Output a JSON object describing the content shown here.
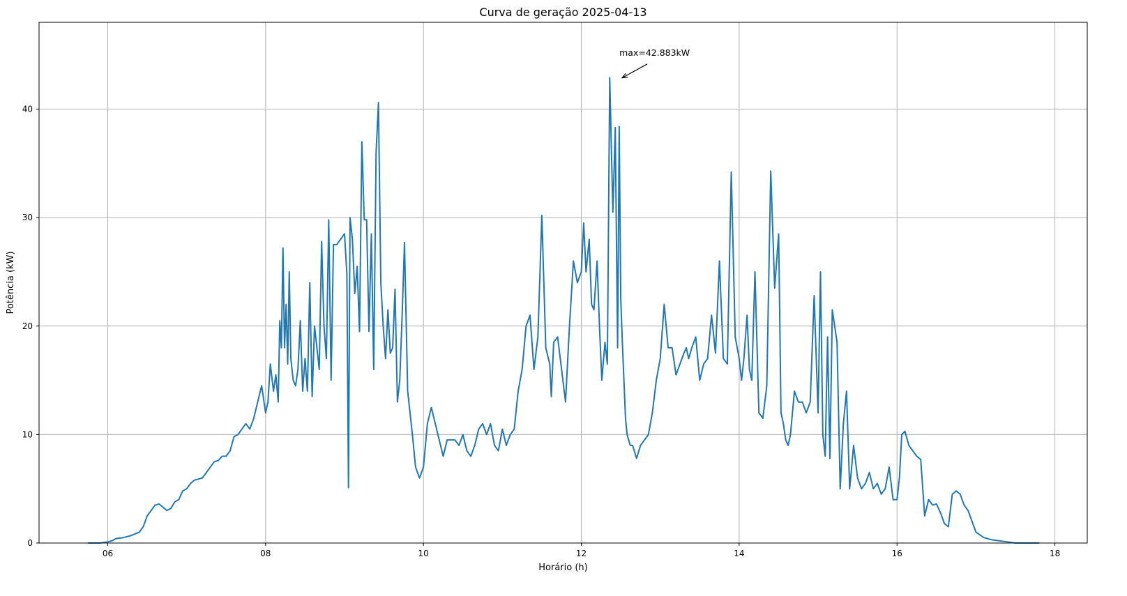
{
  "chart_data": {
    "type": "line",
    "title": "Curva de geração 2025-04-13",
    "xlabel": "Horário (h)",
    "ylabel": "Potência (kW)",
    "xlim": [
      5.13,
      18.41
    ],
    "ylim": [
      0,
      48
    ],
    "x_ticks": [
      6,
      8,
      10,
      12,
      14,
      16,
      18
    ],
    "x_tick_labels": [
      "06",
      "08",
      "10",
      "12",
      "14",
      "16",
      "18"
    ],
    "y_ticks": [
      0,
      10,
      20,
      30,
      40
    ],
    "y_tick_labels": [
      "0",
      "10",
      "20",
      "30",
      "40"
    ],
    "grid": true,
    "line_color": "#1f77b4",
    "annotation": {
      "text": "max=42.883kW",
      "x": 12.5,
      "y": 42.883,
      "text_x": 12.5,
      "text_y": 44.8
    },
    "series": [
      {
        "x": [
          5.75,
          5.9,
          6.0,
          6.05,
          6.08,
          6.1,
          6.2,
          6.3,
          6.4,
          6.45,
          6.5,
          6.55,
          6.6,
          6.65,
          6.7,
          6.75,
          6.8,
          6.85,
          6.9,
          6.95,
          7.0,
          7.05,
          7.1,
          7.15,
          7.2,
          7.25,
          7.3,
          7.35,
          7.4,
          7.45,
          7.5,
          7.55,
          7.6,
          7.65,
          7.7,
          7.75,
          7.8,
          7.85,
          7.9,
          7.95,
          8.0,
          8.03,
          8.06,
          8.1,
          8.13,
          8.16,
          8.18,
          8.2,
          8.22,
          8.24,
          8.26,
          8.28,
          8.3,
          8.32,
          8.35,
          8.38,
          8.41,
          8.44,
          8.47,
          8.5,
          8.53,
          8.56,
          8.59,
          8.62,
          8.65,
          8.68,
          8.71,
          8.74,
          8.77,
          8.8,
          8.83,
          8.86,
          8.9,
          8.95,
          9.0,
          9.03,
          9.05,
          9.07,
          9.1,
          9.13,
          9.16,
          9.19,
          9.22,
          9.25,
          9.28,
          9.31,
          9.34,
          9.37,
          9.4,
          9.43,
          9.46,
          9.49,
          9.52,
          9.55,
          9.58,
          9.61,
          9.64,
          9.67,
          9.7,
          9.73,
          9.76,
          9.8,
          9.83,
          9.86,
          9.9,
          9.95,
          10.0,
          10.05,
          10.1,
          10.15,
          10.2,
          10.25,
          10.3,
          10.35,
          10.4,
          10.45,
          10.5,
          10.55,
          10.6,
          10.65,
          10.7,
          10.75,
          10.8,
          10.85,
          10.9,
          10.95,
          11.0,
          11.05,
          11.1,
          11.15,
          11.2,
          11.25,
          11.3,
          11.35,
          11.4,
          11.45,
          11.5,
          11.55,
          11.6,
          11.62,
          11.65,
          11.7,
          11.75,
          11.8,
          11.85,
          11.9,
          11.95,
          12.0,
          12.03,
          12.06,
          12.1,
          12.13,
          12.16,
          12.2,
          12.23,
          12.26,
          12.3,
          12.33,
          12.36,
          12.4,
          12.43,
          12.46,
          12.48,
          12.5,
          12.52,
          12.54,
          12.56,
          12.58,
          12.6,
          12.62,
          12.65,
          12.7,
          12.75,
          12.8,
          12.85,
          12.9,
          12.95,
          13.0,
          13.05,
          13.1,
          13.15,
          13.2,
          13.25,
          13.3,
          13.33,
          13.36,
          13.4,
          13.45,
          13.5,
          13.55,
          13.6,
          13.65,
          13.7,
          13.75,
          13.8,
          13.85,
          13.9,
          13.95,
          14.0,
          14.03,
          14.06,
          14.1,
          14.13,
          14.16,
          14.2,
          14.25,
          14.3,
          14.35,
          14.4,
          14.45,
          14.5,
          14.53,
          14.56,
          14.59,
          14.62,
          14.65,
          14.7,
          14.75,
          14.8,
          14.85,
          14.9,
          14.95,
          15.0,
          15.03,
          15.06,
          15.09,
          15.12,
          15.15,
          15.18,
          15.21,
          15.24,
          15.28,
          15.32,
          15.36,
          15.4,
          15.45,
          15.5,
          15.55,
          15.6,
          15.65,
          15.7,
          15.75,
          15.8,
          15.85,
          15.9,
          15.95,
          16.0,
          16.03,
          16.06,
          16.1,
          16.15,
          16.2,
          16.25,
          16.3,
          16.35,
          16.4,
          16.45,
          16.5,
          16.55,
          16.6,
          16.65,
          16.7,
          16.75,
          16.8,
          16.85,
          16.9,
          16.95,
          17.0,
          17.1,
          17.2,
          17.3,
          17.4,
          17.5,
          17.6,
          17.7,
          17.8
        ],
        "values": [
          0,
          0,
          0.1,
          0.2,
          0.3,
          0.4,
          0.5,
          0.7,
          1.0,
          1.5,
          2.5,
          3.0,
          3.5,
          3.6,
          3.3,
          3.0,
          3.2,
          3.8,
          4.0,
          4.8,
          5.0,
          5.5,
          5.8,
          5.9,
          6.0,
          6.5,
          7.0,
          7.5,
          7.6,
          8.0,
          8.0,
          8.5,
          9.8,
          10.0,
          10.5,
          11.0,
          10.5,
          11.5,
          13.0,
          14.5,
          12.0,
          13.0,
          16.5,
          14.0,
          15.5,
          13.0,
          20.5,
          18.0,
          27.2,
          18.0,
          22.0,
          16.5,
          25.0,
          17.0,
          15.0,
          14.5,
          16.0,
          20.5,
          14.0,
          17.0,
          14.0,
          24.0,
          13.5,
          20.0,
          18.0,
          16.0,
          27.8,
          20.0,
          17.0,
          29.8,
          15.0,
          27.5,
          27.5,
          28.0,
          28.5,
          24.8,
          5.1,
          30.0,
          28.0,
          23.0,
          25.5,
          19.5,
          37.0,
          29.8,
          29.8,
          19.5,
          28.5,
          16.0,
          36.0,
          40.6,
          24.0,
          20.0,
          17.0,
          21.5,
          17.5,
          18.0,
          23.4,
          13.0,
          15.0,
          21.0,
          27.7,
          14.0,
          12.0,
          10.0,
          7.0,
          6.0,
          7.0,
          11.0,
          12.5,
          11.0,
          9.5,
          8.0,
          9.5,
          9.5,
          9.5,
          9.0,
          10.0,
          8.5,
          8.0,
          9.0,
          10.5,
          11.0,
          10.0,
          11.0,
          9.0,
          8.5,
          10.5,
          9.0,
          10.0,
          10.5,
          14.0,
          16.0,
          20.0,
          21.0,
          16.0,
          19.0,
          30.2,
          18.0,
          16.5,
          13.5,
          18.5,
          19.0,
          16.0,
          13.0,
          20.0,
          26.0,
          24.0,
          25.0,
          29.5,
          25.0,
          28.0,
          22.0,
          21.5,
          26.0,
          20.0,
          15.0,
          18.5,
          16.5,
          42.9,
          30.5,
          38.3,
          18.0,
          38.4,
          22.5,
          18.5,
          15.0,
          11.5,
          10.0,
          9.5,
          9.0,
          9.0,
          7.8,
          9.0,
          9.5,
          10.0,
          12.0,
          15.0,
          17.0,
          22.0,
          18.0,
          18.0,
          15.5,
          16.5,
          17.5,
          18.0,
          17.0,
          18.0,
          19.0,
          15.0,
          16.5,
          17.0,
          21.0,
          17.5,
          26.0,
          17.0,
          16.5,
          34.2,
          19.0,
          17.0,
          15.0,
          17.0,
          21.0,
          16.0,
          15.0,
          25.0,
          12.0,
          11.5,
          14.5,
          34.3,
          23.5,
          28.5,
          12.0,
          11.0,
          9.5,
          9.0,
          10.0,
          14.0,
          13.0,
          13.0,
          12.0,
          13.0,
          22.8,
          12.0,
          25.0,
          10.0,
          8.0,
          19.0,
          7.8,
          21.5,
          20.0,
          18.5,
          5.0,
          11.0,
          14.0,
          5.0,
          9.0,
          6.0,
          5.0,
          5.5,
          6.5,
          5.0,
          5.5,
          4.5,
          5.0,
          7.0,
          4.0,
          4.0,
          6.0,
          10.0,
          10.3,
          9.0,
          8.5,
          8.0,
          7.7,
          2.5,
          4.0,
          3.5,
          3.6,
          2.8,
          1.8,
          1.5,
          4.5,
          4.8,
          4.5,
          3.5,
          3.0,
          2.0,
          1.0,
          0.5,
          0.3,
          0.2,
          0.1,
          0,
          0,
          0,
          0
        ]
      }
    ]
  }
}
